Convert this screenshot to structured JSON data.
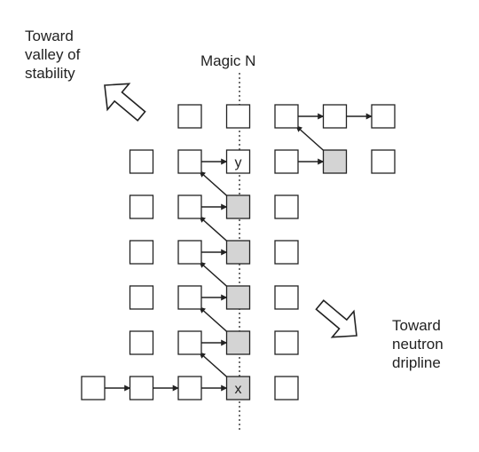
{
  "labels": {
    "magic_n": "Magic N",
    "toward_stability": [
      "Toward",
      "valley of",
      "stability"
    ],
    "toward_dripline": [
      "Toward",
      "neutron",
      "dripline"
    ]
  },
  "cell_labels": {
    "x": "x",
    "y": "y"
  },
  "colors": {
    "stroke": "#222222",
    "shaded_fill": "#d4d4d4",
    "plain_fill": "#ffffff"
  },
  "cells": [
    {
      "col": 2,
      "row": 0,
      "shaded": false
    },
    {
      "col": 3,
      "row": 0,
      "shaded": false
    },
    {
      "col": 4,
      "row": 0,
      "shaded": false
    },
    {
      "col": 5,
      "row": 0,
      "shaded": false
    },
    {
      "col": 6,
      "row": 0,
      "shaded": false
    },
    {
      "col": 1,
      "row": 1,
      "shaded": false
    },
    {
      "col": 2,
      "row": 1,
      "shaded": false
    },
    {
      "col": 3,
      "row": 1,
      "shaded": false,
      "label": "y"
    },
    {
      "col": 4,
      "row": 1,
      "shaded": false
    },
    {
      "col": 5,
      "row": 1,
      "shaded": true
    },
    {
      "col": 6,
      "row": 1,
      "shaded": false
    },
    {
      "col": 1,
      "row": 2,
      "shaded": false
    },
    {
      "col": 2,
      "row": 2,
      "shaded": false
    },
    {
      "col": 3,
      "row": 2,
      "shaded": true
    },
    {
      "col": 4,
      "row": 2,
      "shaded": false
    },
    {
      "col": 1,
      "row": 3,
      "shaded": false
    },
    {
      "col": 2,
      "row": 3,
      "shaded": false
    },
    {
      "col": 3,
      "row": 3,
      "shaded": true
    },
    {
      "col": 4,
      "row": 3,
      "shaded": false
    },
    {
      "col": 1,
      "row": 4,
      "shaded": false
    },
    {
      "col": 2,
      "row": 4,
      "shaded": false
    },
    {
      "col": 3,
      "row": 4,
      "shaded": true
    },
    {
      "col": 4,
      "row": 4,
      "shaded": false
    },
    {
      "col": 1,
      "row": 5,
      "shaded": false
    },
    {
      "col": 2,
      "row": 5,
      "shaded": false
    },
    {
      "col": 3,
      "row": 5,
      "shaded": true
    },
    {
      "col": 4,
      "row": 5,
      "shaded": false
    },
    {
      "col": 0,
      "row": 6,
      "shaded": false
    },
    {
      "col": 1,
      "row": 6,
      "shaded": false
    },
    {
      "col": 2,
      "row": 6,
      "shaded": false
    },
    {
      "col": 3,
      "row": 6,
      "shaded": true,
      "label": "x"
    },
    {
      "col": 4,
      "row": 6,
      "shaded": false
    }
  ],
  "arrows": [
    {
      "from": [
        0,
        6
      ],
      "to": [
        1,
        6
      ]
    },
    {
      "from": [
        1,
        6
      ],
      "to": [
        2,
        6
      ]
    },
    {
      "from": [
        2,
        6
      ],
      "to": [
        3,
        6
      ]
    },
    {
      "from": [
        3,
        6
      ],
      "to": [
        2,
        5
      ]
    },
    {
      "from": [
        2,
        5
      ],
      "to": [
        3,
        5
      ]
    },
    {
      "from": [
        3,
        5
      ],
      "to": [
        2,
        4
      ]
    },
    {
      "from": [
        2,
        4
      ],
      "to": [
        3,
        4
      ]
    },
    {
      "from": [
        3,
        4
      ],
      "to": [
        2,
        3
      ]
    },
    {
      "from": [
        2,
        3
      ],
      "to": [
        3,
        3
      ]
    },
    {
      "from": [
        3,
        3
      ],
      "to": [
        2,
        2
      ]
    },
    {
      "from": [
        2,
        2
      ],
      "to": [
        3,
        2
      ]
    },
    {
      "from": [
        3,
        2
      ],
      "to": [
        2,
        1
      ]
    },
    {
      "from": [
        2,
        1
      ],
      "to": [
        3,
        1
      ]
    },
    {
      "from": [
        4,
        1
      ],
      "to": [
        5,
        1
      ]
    },
    {
      "from": [
        5,
        1
      ],
      "to": [
        4,
        0
      ]
    },
    {
      "from": [
        4,
        0
      ],
      "to": [
        5,
        0
      ]
    },
    {
      "from": [
        5,
        0
      ],
      "to": [
        6,
        0
      ]
    }
  ],
  "direction_arrows": [
    {
      "name": "toward-stability-arrow",
      "direction": "up-left"
    },
    {
      "name": "toward-dripline-arrow",
      "direction": "down-right"
    }
  ]
}
